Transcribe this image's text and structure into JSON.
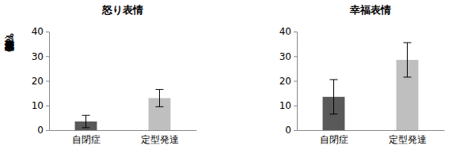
{
  "chart_data": [
    {
      "type": "bar",
      "title": "怒り表情",
      "y_label": "平均出現頻度（%）",
      "categories": [
        "自閉症",
        "定型発達"
      ],
      "values": [
        3.5,
        13
      ],
      "errors": [
        2.5,
        3.5
      ],
      "colors": [
        "#595959",
        "#bfbfbf"
      ],
      "ylim": [
        0,
        40
      ],
      "yticks": [
        0,
        10,
        20,
        30,
        40
      ],
      "grid": false
    },
    {
      "type": "bar",
      "title": "幸福表情",
      "categories": [
        "自閉症",
        "定型発達"
      ],
      "values": [
        13.5,
        28.5
      ],
      "errors": [
        7,
        7
      ],
      "colors": [
        "#595959",
        "#bfbfbf"
      ],
      "ylim": [
        0,
        40
      ],
      "yticks": [
        0,
        10,
        20,
        30,
        40
      ],
      "grid": false
    }
  ]
}
